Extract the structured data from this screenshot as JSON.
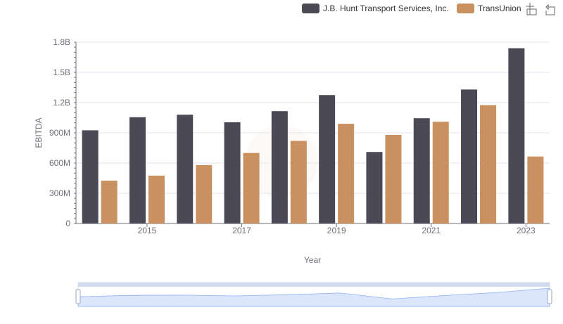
{
  "chart_data": {
    "type": "bar",
    "title": "",
    "xlabel": "Year",
    "ylabel": "EBITDA",
    "x": [
      2014,
      2015,
      2016,
      2017,
      2018,
      2019,
      2020,
      2021,
      2022,
      2023
    ],
    "x_tick_labels": [
      "2015",
      "2017",
      "2019",
      "2021",
      "2023"
    ],
    "y_tick_labels": [
      "0",
      "300M",
      "600M",
      "900M",
      "1.2B",
      "1.5B",
      "1.8B"
    ],
    "ylim": [
      0,
      1800000000
    ],
    "grid": true,
    "legend_position": "top-right",
    "series": [
      {
        "name": "J.B. Hunt Transport Services, Inc.",
        "color": "#4a4955",
        "values": [
          925000000,
          1055000000,
          1080000000,
          1005000000,
          1115000000,
          1275000000,
          710000000,
          1045000000,
          1330000000,
          1740000000
        ]
      },
      {
        "name": "TransUnion",
        "color": "#c9915f",
        "values": [
          425000000,
          475000000,
          580000000,
          700000000,
          820000000,
          990000000,
          880000000,
          1010000000,
          1175000000,
          665000000
        ]
      }
    ]
  },
  "toolbox": {
    "zoom_icon": "zoom-icon",
    "restore_icon": "restore-icon"
  },
  "colors": {
    "grid": "#e0e6f1",
    "axis": "#6e7079",
    "zoom_fill": "#e3ecfd",
    "zoom_series": "#8fb0f7"
  }
}
